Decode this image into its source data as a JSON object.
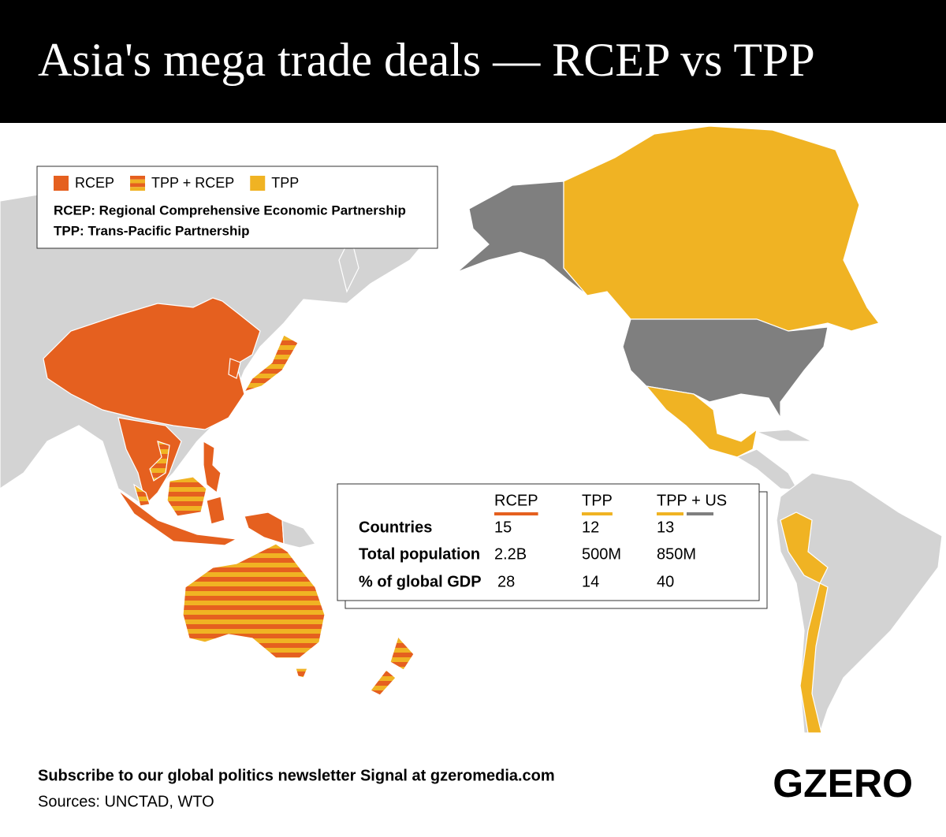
{
  "header": {
    "title": "Asia's mega trade deals — RCEP vs TPP"
  },
  "legend": {
    "items": [
      {
        "label": "RCEP",
        "colors": [
          "#e5601f"
        ]
      },
      {
        "label": "TPP + RCEP",
        "colors": [
          "#e5601f",
          "#f0b323"
        ]
      },
      {
        "label": "TPP",
        "colors": [
          "#f0b323"
        ]
      }
    ],
    "definitions": [
      "RCEP: Regional Comprehensive Economic Partnership",
      "TPP: Trans-Pacific Partnership"
    ]
  },
  "table": {
    "columns": [
      "RCEP",
      "TPP",
      "TPP + US"
    ],
    "rows": [
      [
        "Countries",
        15,
        12,
        13
      ],
      [
        "Total population",
        "2.2B",
        "500M",
        "850M"
      ],
      [
        "% of global GDP",
        28,
        14,
        40
      ]
    ]
  },
  "footer": {
    "subscribe": "Subscribe to our global politics newsletter Signal at gzeromedia.com",
    "sources": "Sources: UNCTAD, WTO"
  },
  "logo": "GZERO"
}
